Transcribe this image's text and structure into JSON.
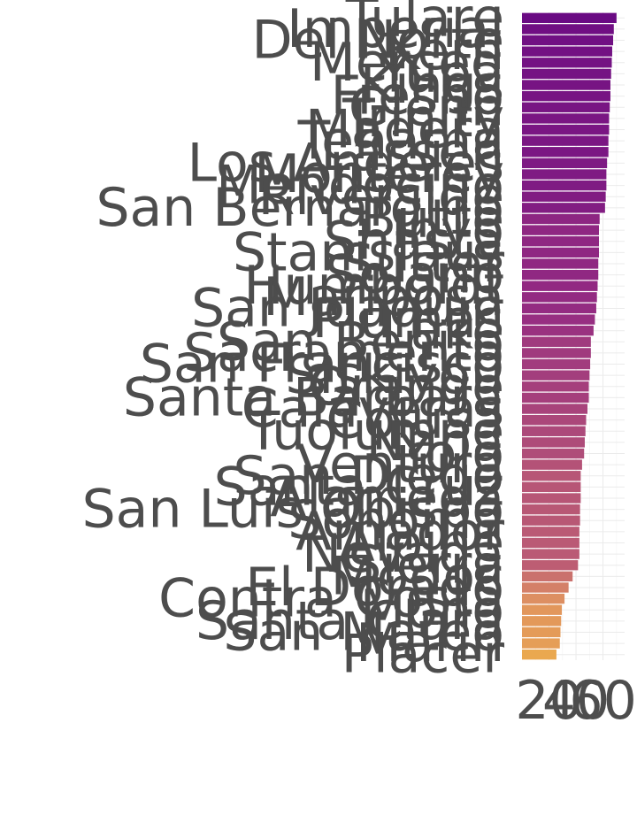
{
  "chart_data": {
    "type": "bar",
    "orientation": "horizontal",
    "title": "",
    "xlabel": "",
    "ylabel": "",
    "categories": [
      "Tulare",
      "Imperial",
      "Del Norte",
      "Kern",
      "Merced",
      "Yuba",
      "Kings",
      "Fresno",
      "Glenn",
      "Trinity",
      "Madera",
      "Tehama",
      "Lassen",
      "Los Angeles",
      "Monterey",
      "Mendocino",
      "Riverside",
      "San Bernardino",
      "Butte",
      "Inyo",
      "Shasta",
      "Stanislaus",
      "Sutter",
      "Solano",
      "Humboldt",
      "Mariposa",
      "San Joaquin",
      "Plumas",
      "Lake",
      "San Benito",
      "Sacramento",
      "San Francisco",
      "Siskiyou",
      "Orange",
      "Santa Barbara",
      "Calaveras",
      "Colusa",
      "Tuolumne",
      "Napa",
      "Yolo",
      "Ventura",
      "San Diego",
      "Santa Cruz",
      "Alameda",
      "San Luis Obispo",
      "Sonoma",
      "Amador",
      "Alpine",
      "Nevada",
      "Sierra",
      "Modoc",
      "El Dorado",
      "Contra Costa",
      "Mono",
      "Santa Clara",
      "San Mateo",
      "Marin",
      "Placer"
    ],
    "values": [
      70.0,
      68.0,
      67.5,
      66.8,
      66.5,
      66.0,
      65.5,
      65.5,
      65.0,
      64.5,
      64.5,
      64.0,
      64.0,
      63.0,
      62.5,
      62.5,
      62.0,
      61.5,
      57.5,
      57.0,
      57.0,
      57.0,
      56.5,
      56.5,
      56.0,
      55.5,
      55.0,
      54.0,
      53.0,
      51.0,
      51.0,
      50.5,
      50.0,
      49.5,
      49.5,
      48.5,
      47.5,
      47.0,
      46.5,
      46.0,
      44.5,
      43.5,
      43.5,
      43.5,
      43.0,
      43.0,
      42.5,
      42.5,
      42.5,
      41.5,
      37.5,
      34.5,
      31.5,
      29.5,
      29.0,
      28.5,
      28.0,
      25.5
    ],
    "xlim": [
      0,
      76
    ],
    "xticks": [
      20,
      40,
      60
    ],
    "xtick_labels": [
      "20",
      "40",
      "60"
    ],
    "grid": true,
    "legend": "none",
    "colors": {
      "high": "#6a0a83",
      "low": "#eaa84f",
      "text": "#4d4d4d",
      "grid": "#ebebeb"
    }
  }
}
